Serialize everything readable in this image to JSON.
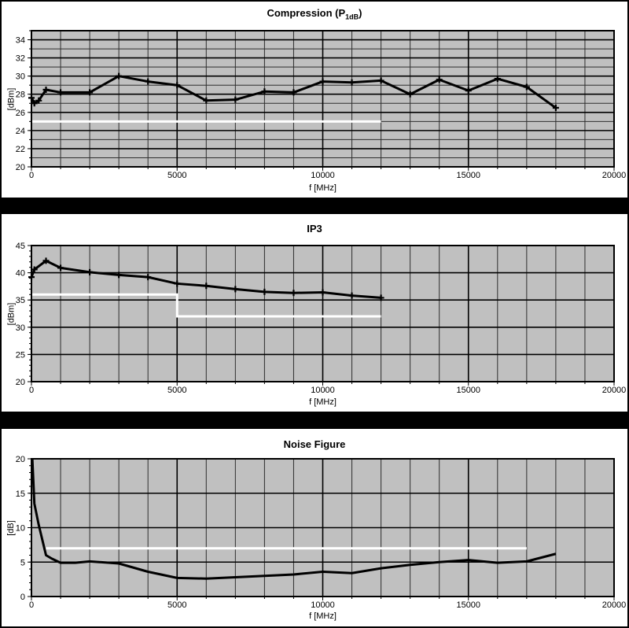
{
  "page": {
    "background_color": "#000000",
    "panel_color": "#ffffff",
    "plot_background_color": "#c0c0c0",
    "trace_color": "#000000",
    "limit_line_color": "#ffffff"
  },
  "chart_data": [
    {
      "type": "line",
      "title": "Compression (P 1dB)",
      "title_main": "Compression (P",
      "title_sub": "1dB",
      "title_close": ")",
      "xlabel": "f [MHz]",
      "ylabel": "[dBm]",
      "xlim": [
        0,
        20000
      ],
      "ylim": [
        20,
        35
      ],
      "x_label_step": 5000,
      "x_minor_step": 1000,
      "y_label_step": 2,
      "y_minor_step": 1,
      "grid": "on",
      "series": [
        {
          "name": "measured-p1db",
          "markers": true,
          "points": [
            [
              0,
              27.6
            ],
            [
              100,
              27.0
            ],
            [
              250,
              27.3
            ],
            [
              500,
              28.5
            ],
            [
              1000,
              28.2
            ],
            [
              2000,
              28.2
            ],
            [
              3000,
              30.0
            ],
            [
              4000,
              29.4
            ],
            [
              5000,
              29.0
            ],
            [
              6000,
              27.3
            ],
            [
              7000,
              27.4
            ],
            [
              8000,
              28.3
            ],
            [
              9000,
              28.2
            ],
            [
              10000,
              29.4
            ],
            [
              11000,
              29.3
            ],
            [
              12000,
              29.5
            ],
            [
              13000,
              28.0
            ],
            [
              14000,
              29.6
            ],
            [
              15000,
              28.4
            ],
            [
              16000,
              29.7
            ],
            [
              17000,
              28.8
            ],
            [
              18000,
              26.5
            ]
          ]
        }
      ],
      "limit_lines": [
        {
          "name": "spec-limit-25dbm",
          "points": [
            [
              0,
              25
            ],
            [
              12000,
              25
            ]
          ]
        }
      ]
    },
    {
      "type": "line",
      "title": "IP3",
      "xlabel": "f [MHz]",
      "ylabel": "[dBm]",
      "xlim": [
        0,
        20000
      ],
      "ylim": [
        20,
        45
      ],
      "x_label_step": 5000,
      "x_minor_step": 1000,
      "y_label_step": 5,
      "y_minor_step": null,
      "grid": "on",
      "series": [
        {
          "name": "measured-ip3",
          "markers": true,
          "points": [
            [
              0,
              39.2
            ],
            [
              100,
              40.6
            ],
            [
              500,
              42.2
            ],
            [
              1000,
              40.9
            ],
            [
              2000,
              40.1
            ],
            [
              3000,
              39.6
            ],
            [
              4000,
              39.2
            ],
            [
              5000,
              38.0
            ],
            [
              6000,
              37.6
            ],
            [
              7000,
              37.0
            ],
            [
              8000,
              36.5
            ],
            [
              9000,
              36.3
            ],
            [
              10000,
              36.4
            ],
            [
              11000,
              35.8
            ],
            [
              12000,
              35.4
            ]
          ]
        }
      ],
      "limit_lines": [
        {
          "name": "spec-limit-step",
          "points": [
            [
              0,
              36
            ],
            [
              5000,
              36
            ],
            [
              5000,
              32
            ],
            [
              12000,
              32
            ]
          ]
        }
      ]
    },
    {
      "type": "line",
      "title": "Noise Figure",
      "xlabel": "f [MHz]",
      "ylabel": "[dB]",
      "xlim": [
        0,
        20000
      ],
      "ylim": [
        0,
        20
      ],
      "x_label_step": 5000,
      "x_minor_step": 1000,
      "y_label_step": 5,
      "y_minor_step": null,
      "grid": "on",
      "series": [
        {
          "name": "measured-nf",
          "markers": false,
          "points": [
            [
              30,
              20.0
            ],
            [
              100,
              13.5
            ],
            [
              250,
              10.4
            ],
            [
              500,
              6.0
            ],
            [
              700,
              5.5
            ],
            [
              1000,
              4.9
            ],
            [
              1500,
              4.9
            ],
            [
              2000,
              5.1
            ],
            [
              3000,
              4.8
            ],
            [
              4000,
              3.6
            ],
            [
              5000,
              2.7
            ],
            [
              6000,
              2.6
            ],
            [
              7000,
              2.8
            ],
            [
              8000,
              3.0
            ],
            [
              9000,
              3.2
            ],
            [
              10000,
              3.6
            ],
            [
              11000,
              3.4
            ],
            [
              12000,
              4.1
            ],
            [
              13000,
              4.6
            ],
            [
              14000,
              5.0
            ],
            [
              15000,
              5.3
            ],
            [
              16000,
              4.9
            ],
            [
              17000,
              5.1
            ],
            [
              18000,
              6.2
            ]
          ]
        }
      ],
      "limit_lines": [
        {
          "name": "spec-limit-7db",
          "points": [
            [
              500,
              7
            ],
            [
              17000,
              7
            ]
          ]
        }
      ]
    }
  ]
}
